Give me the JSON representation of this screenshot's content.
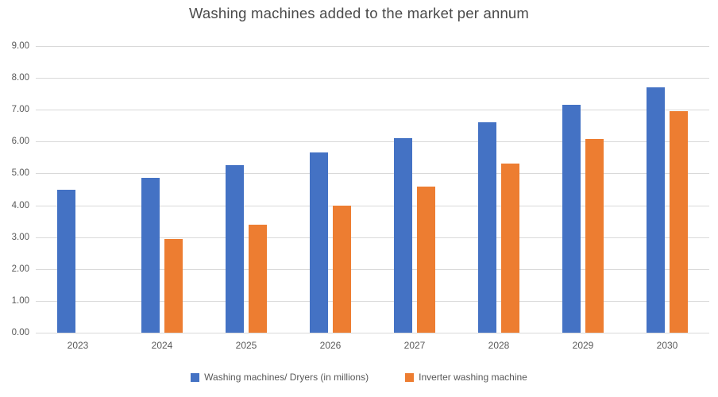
{
  "chart_data": {
    "type": "bar",
    "title": "Washing machines added to the market per annum",
    "categories": [
      "2023",
      "2024",
      "2025",
      "2026",
      "2027",
      "2028",
      "2029",
      "2030"
    ],
    "series": [
      {
        "name": "Washing machines/ Dryers (in millions)",
        "color": "#4472C4",
        "values": [
          4.5,
          4.87,
          5.26,
          5.67,
          6.12,
          6.61,
          7.16,
          7.7
        ]
      },
      {
        "name": "Inverter washing machine",
        "color": "#ED7D31",
        "values": [
          null,
          2.93,
          3.4,
          3.98,
          4.6,
          5.3,
          6.08,
          6.95
        ]
      }
    ],
    "xlabel": "",
    "ylabel": "",
    "ylim": [
      0,
      9
    ],
    "yticks": [
      {
        "value": 0,
        "label": "0.00"
      },
      {
        "value": 1,
        "label": "1.00"
      },
      {
        "value": 2,
        "label": "2.00"
      },
      {
        "value": 3,
        "label": "3.00"
      },
      {
        "value": 4,
        "label": "4.00"
      },
      {
        "value": 5,
        "label": "5.00"
      },
      {
        "value": 6,
        "label": "6.00"
      },
      {
        "value": 7,
        "label": "7.00"
      },
      {
        "value": 8,
        "label": "8.00"
      },
      {
        "value": 9,
        "label": "9.00"
      }
    ],
    "grid": true,
    "legend_position": "bottom"
  },
  "colors": {
    "background": "#FFFFFF",
    "gridline": "#D9D9D9",
    "axis_text": "#595959",
    "title_text": "#4A4A4A"
  }
}
